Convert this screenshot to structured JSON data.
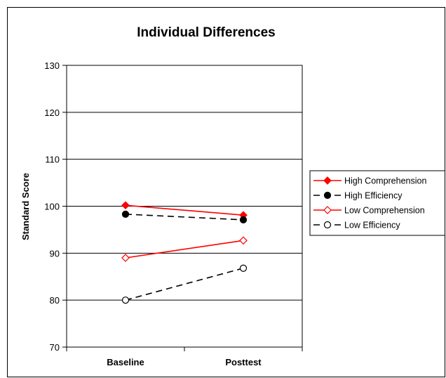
{
  "chart_data": {
    "type": "line",
    "title": "Individual Differences",
    "xlabel": "",
    "ylabel": "Standard Score",
    "categories": [
      "Baseline",
      "Posttest"
    ],
    "ylim": [
      70,
      130
    ],
    "yticks": [
      70,
      80,
      90,
      100,
      110,
      120,
      130
    ],
    "grid": true,
    "legend_position": "right",
    "series": [
      {
        "name": "High Comprehension",
        "values": [
          100.2,
          98.1
        ],
        "color": "#ff0000",
        "dash": "solid",
        "marker": "filled-diamond"
      },
      {
        "name": "High Efficiency",
        "values": [
          98.3,
          97.1
        ],
        "color": "#000000",
        "dash": "dashed",
        "marker": "filled-circle"
      },
      {
        "name": "Low Comprehension",
        "values": [
          89.0,
          92.7
        ],
        "color": "#ff0000",
        "dash": "solid",
        "marker": "open-diamond"
      },
      {
        "name": "Low Efficiency",
        "values": [
          80.0,
          86.8
        ],
        "color": "#000000",
        "dash": "dashed",
        "marker": "open-circle"
      }
    ]
  }
}
